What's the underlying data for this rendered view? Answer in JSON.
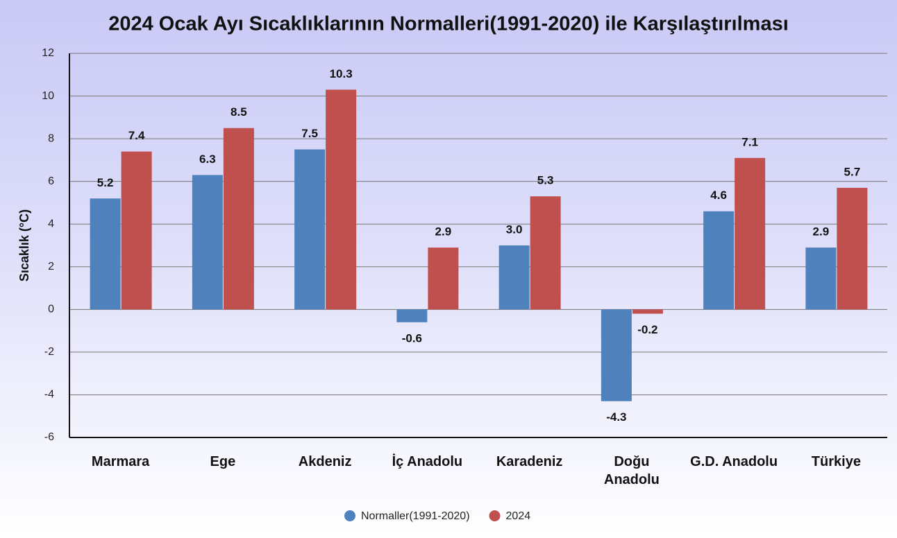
{
  "chart_data": {
    "type": "bar",
    "title": "2024 Ocak Ayı Sıcaklıklarının Normalleri(1991-2020) ile Karşılaştırılması",
    "ylabel": "Sıcaklık (°C)",
    "categories": [
      "Marmara",
      "Ege",
      "Akdeniz",
      "İç Anadolu",
      "Karadeniz",
      "Doğu Anadolu",
      "G.D. Anadolu",
      "Türkiye"
    ],
    "series": [
      {
        "name": "Normaller(1991-2020)",
        "color": "#4f81bd",
        "values": [
          5.2,
          6.3,
          7.5,
          -0.6,
          3.0,
          -4.3,
          4.6,
          2.9
        ],
        "value_labels": [
          "5.2",
          "6.3",
          "7.5",
          "-0.6",
          "3.0",
          "-4.3",
          "4.6",
          "2.9"
        ]
      },
      {
        "name": "2024",
        "color": "#c0504d",
        "values": [
          7.4,
          8.5,
          10.3,
          2.9,
          5.3,
          -0.2,
          7.1,
          5.7
        ],
        "value_labels": [
          "7.4",
          "8.5",
          "10.3",
          "2.9",
          "5.3",
          "-0.2",
          "7.1",
          "5.7"
        ]
      }
    ],
    "ylim": [
      -6,
      12
    ],
    "yticks": [
      -6,
      -4,
      -2,
      0,
      2,
      4,
      6,
      8,
      10,
      12
    ],
    "grid": true,
    "legend": "bottom"
  }
}
